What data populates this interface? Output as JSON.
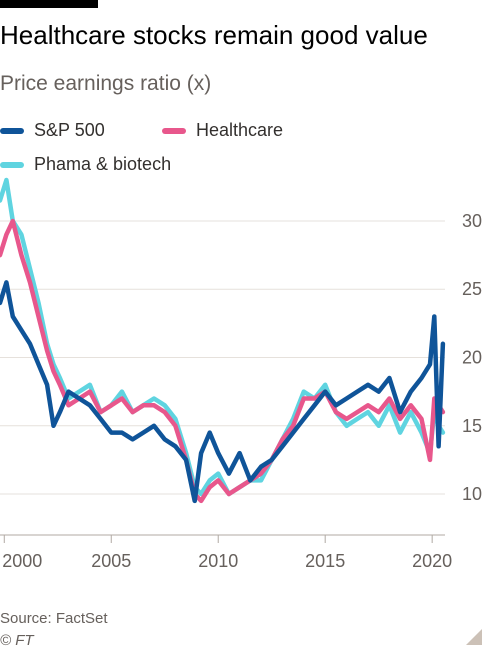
{
  "title": "Healthcare stocks remain good value",
  "subtitle": "Price earnings ratio (x)",
  "source": "Source: FactSet",
  "copyright": "© FT",
  "colors": {
    "sp500": "#0f5499",
    "healthcare": "#e8578c",
    "pharma": "#5fd4e0",
    "grid": "#e6e1dc",
    "axis": "#b0a9a3"
  },
  "chart_data": {
    "type": "line",
    "ylim": [
      7,
      33
    ],
    "xlim": [
      1999.8,
      2020.6
    ],
    "yticks": [
      10,
      15,
      20,
      25,
      30
    ],
    "ytick_labels": [
      "10",
      "15",
      "20",
      "25",
      "30"
    ],
    "xticks": [
      2000,
      2005,
      2010,
      2015,
      2020
    ],
    "xtick_labels": [
      "2000",
      "2005",
      "2010",
      "2015",
      "2020"
    ],
    "legend": [
      "S&P 500",
      "Healthcare",
      "Phama & biotech"
    ],
    "legend_position": "top-left",
    "series": [
      {
        "name": "Phama & biotech",
        "color": "#5fd4e0",
        "x": [
          1999.8,
          2000.1,
          2000.4,
          2000.8,
          2001.2,
          2001.6,
          2002.0,
          2002.3,
          2002.6,
          2003.0,
          2003.5,
          2004.0,
          2004.5,
          2005.0,
          2005.5,
          2006.0,
          2006.5,
          2007.0,
          2007.5,
          2008.0,
          2008.5,
          2008.9,
          2009.2,
          2009.6,
          2010.0,
          2010.5,
          2011.0,
          2011.5,
          2012.0,
          2012.5,
          2013.0,
          2013.5,
          2014.0,
          2014.5,
          2015.0,
          2015.5,
          2016.0,
          2016.5,
          2017.0,
          2017.5,
          2018.0,
          2018.5,
          2019.0,
          2019.5,
          2019.9,
          2020.1,
          2020.3,
          2020.5
        ],
        "y": [
          31.5,
          33.0,
          30.0,
          29.0,
          26.5,
          24.0,
          21.0,
          19.5,
          18.5,
          17.0,
          17.5,
          18.0,
          16.0,
          16.5,
          17.5,
          16.0,
          16.5,
          17.0,
          16.5,
          15.5,
          13.0,
          10.5,
          10.0,
          11.0,
          11.5,
          10.0,
          10.5,
          11.0,
          11.0,
          12.5,
          14.0,
          15.5,
          17.5,
          17.0,
          18.0,
          16.0,
          15.0,
          15.5,
          16.0,
          15.0,
          16.5,
          14.5,
          16.0,
          14.5,
          13.0,
          16.0,
          15.0,
          14.5
        ]
      },
      {
        "name": "Healthcare",
        "color": "#e8578c",
        "x": [
          1999.8,
          2000.1,
          2000.4,
          2000.8,
          2001.2,
          2001.6,
          2002.0,
          2002.3,
          2002.6,
          2003.0,
          2003.5,
          2004.0,
          2004.5,
          2005.0,
          2005.5,
          2006.0,
          2006.5,
          2007.0,
          2007.5,
          2008.0,
          2008.5,
          2008.9,
          2009.2,
          2009.6,
          2010.0,
          2010.5,
          2011.0,
          2011.5,
          2012.0,
          2012.5,
          2013.0,
          2013.5,
          2014.0,
          2014.5,
          2015.0,
          2015.5,
          2016.0,
          2016.5,
          2017.0,
          2017.5,
          2018.0,
          2018.5,
          2019.0,
          2019.5,
          2019.9,
          2020.1,
          2020.3,
          2020.5
        ],
        "y": [
          27.5,
          29.0,
          30.0,
          27.5,
          25.5,
          23.0,
          20.5,
          19.0,
          18.0,
          16.5,
          17.0,
          17.5,
          16.0,
          16.5,
          17.0,
          16.0,
          16.5,
          16.5,
          16.0,
          15.0,
          12.5,
          10.0,
          9.5,
          10.5,
          11.0,
          10.0,
          10.5,
          11.0,
          11.5,
          12.5,
          14.0,
          15.0,
          17.0,
          17.0,
          17.5,
          16.0,
          15.5,
          16.0,
          16.5,
          16.0,
          17.0,
          15.5,
          16.5,
          15.5,
          12.5,
          17.0,
          16.5,
          16.0
        ]
      },
      {
        "name": "S&P 500",
        "color": "#0f5499",
        "x": [
          1999.8,
          2000.1,
          2000.4,
          2000.8,
          2001.2,
          2001.6,
          2002.0,
          2002.3,
          2002.6,
          2003.0,
          2003.5,
          2004.0,
          2004.5,
          2005.0,
          2005.5,
          2006.0,
          2006.5,
          2007.0,
          2007.5,
          2008.0,
          2008.5,
          2008.9,
          2009.2,
          2009.6,
          2010.0,
          2010.5,
          2011.0,
          2011.5,
          2012.0,
          2012.5,
          2013.0,
          2013.5,
          2014.0,
          2014.5,
          2015.0,
          2015.5,
          2016.0,
          2016.5,
          2017.0,
          2017.5,
          2018.0,
          2018.5,
          2019.0,
          2019.5,
          2019.9,
          2020.1,
          2020.3,
          2020.5
        ],
        "y": [
          24.0,
          25.5,
          23.0,
          22.0,
          21.0,
          19.5,
          18.0,
          15.0,
          16.0,
          17.5,
          17.0,
          16.5,
          15.5,
          14.5,
          14.5,
          14.0,
          14.5,
          15.0,
          14.0,
          13.5,
          12.5,
          9.5,
          13.0,
          14.5,
          13.0,
          11.5,
          13.0,
          11.0,
          12.0,
          12.5,
          13.5,
          14.5,
          15.5,
          16.5,
          17.5,
          16.5,
          17.0,
          17.5,
          18.0,
          17.5,
          18.5,
          16.0,
          17.5,
          18.5,
          19.5,
          23.0,
          13.5,
          21.0
        ]
      }
    ]
  }
}
